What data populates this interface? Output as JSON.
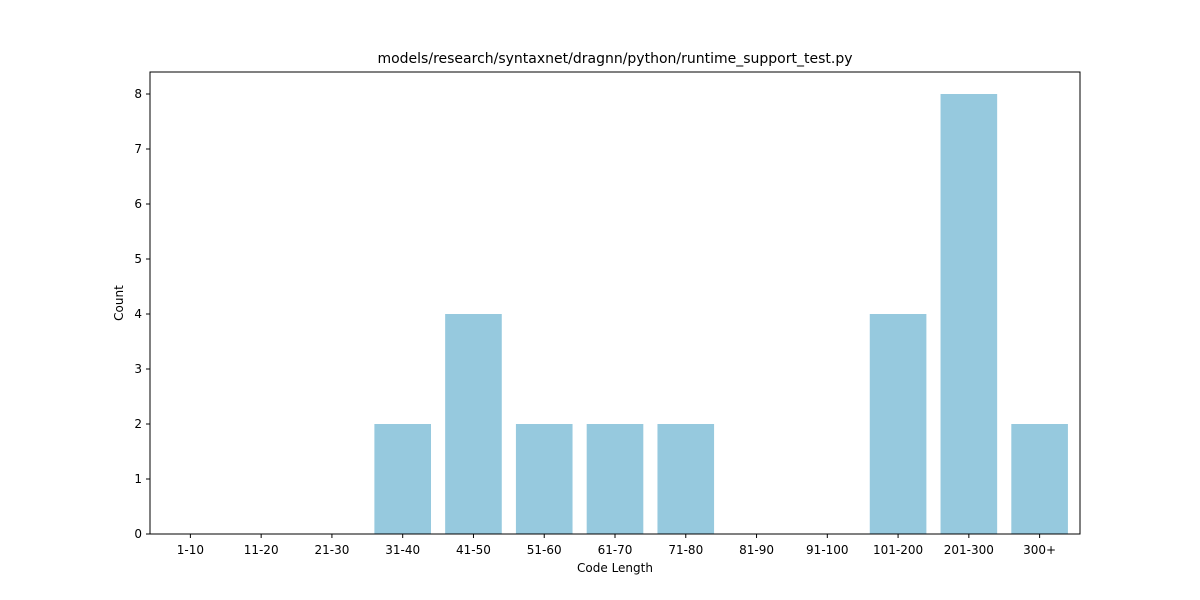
{
  "chart_data": {
    "type": "bar",
    "title": "models/research/syntaxnet/dragnn/python/runtime_support_test.py",
    "xlabel": "Code Length",
    "ylabel": "Count",
    "categories": [
      "1-10",
      "11-20",
      "21-30",
      "31-40",
      "41-50",
      "51-60",
      "61-70",
      "71-80",
      "81-90",
      "91-100",
      "101-200",
      "201-300",
      "300+"
    ],
    "values": [
      0,
      0,
      0,
      2,
      4,
      2,
      2,
      2,
      0,
      0,
      4,
      8,
      2
    ],
    "ylim": [
      0,
      8.4
    ],
    "yticks": [
      0,
      1,
      2,
      3,
      4,
      5,
      6,
      7,
      8
    ],
    "bar_color": "#96c9de",
    "grid": false,
    "legend": "none"
  }
}
